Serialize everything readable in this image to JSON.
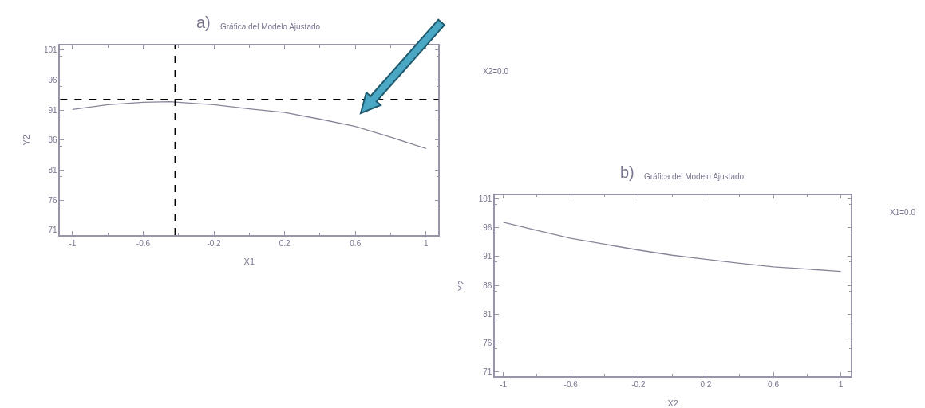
{
  "chart_data": [
    {
      "type": "line",
      "title": "a) Gráfica del Modelo Ajustado",
      "xlabel": "X1",
      "ylabel": "Y2",
      "x": [
        -1,
        -0.8,
        -0.6,
        -0.45,
        -0.2,
        0,
        0.2,
        0.4,
        0.6,
        0.8,
        1
      ],
      "series": [
        {
          "color": "#8a8499",
          "values": [
            91.1,
            91.9,
            92.3,
            92.4,
            91.9,
            91.2,
            90.6,
            89.5,
            88.3,
            86.5,
            84.6
          ]
        }
      ],
      "xlim": [
        -1.07,
        1.07
      ],
      "ylim": [
        70.2,
        101.8
      ],
      "xticks": [
        -1,
        -0.6,
        -0.2,
        0.2,
        0.6,
        1
      ],
      "yticks": [
        71,
        76,
        81,
        86,
        91,
        96,
        101
      ],
      "ref_lines": [
        {
          "axis": "x",
          "value": -0.42,
          "color": "#000000",
          "line_style": "dashed"
        },
        {
          "axis": "y",
          "value": 92.8,
          "color": "#000000",
          "line_style": "dashed"
        }
      ],
      "annotations": [
        "X2=0.0"
      ],
      "grid": false
    },
    {
      "type": "line",
      "title": "b) Gráfica del Modelo Ajustado",
      "xlabel": "X2",
      "ylabel": "Y2",
      "x": [
        -1,
        -0.8,
        -0.6,
        -0.4,
        -0.2,
        0,
        0.2,
        0.4,
        0.6,
        0.8,
        1
      ],
      "series": [
        {
          "color": "#8a8499",
          "values": [
            96.9,
            95.5,
            94.1,
            93.1,
            92.1,
            91.2,
            90.5,
            89.8,
            89.2,
            88.8,
            88.4
          ]
        }
      ],
      "xlim": [
        -1.05,
        1.06
      ],
      "ylim": [
        70.3,
        101.6
      ],
      "xticks": [
        -1,
        -0.6,
        -0.2,
        0.2,
        0.6,
        1
      ],
      "yticks": [
        71,
        76,
        81,
        86,
        91,
        96,
        101
      ],
      "annotations": [
        "X1=0.0"
      ],
      "grid": false
    }
  ]
}
